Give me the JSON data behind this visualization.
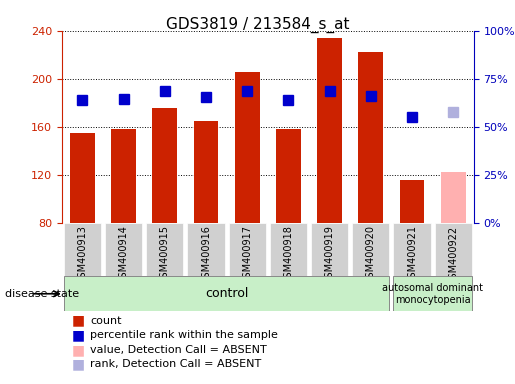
{
  "title": "GDS3819 / 213584_s_at",
  "samples": [
    "GSM400913",
    "GSM400914",
    "GSM400915",
    "GSM400916",
    "GSM400917",
    "GSM400918",
    "GSM400919",
    "GSM400920",
    "GSM400921",
    "GSM400922"
  ],
  "bar_values": [
    155,
    158,
    176,
    165,
    206,
    158,
    234,
    222,
    116,
    122
  ],
  "bar_colors": [
    "#cc2200",
    "#cc2200",
    "#cc2200",
    "#cc2200",
    "#cc2200",
    "#cc2200",
    "#cc2200",
    "#cc2200",
    "#cc2200",
    "#ffb0b0"
  ],
  "rank_values": [
    182,
    183,
    190,
    185,
    190,
    182,
    190,
    186,
    168,
    172
  ],
  "rank_colors": [
    "#0000cc",
    "#0000cc",
    "#0000cc",
    "#0000cc",
    "#0000cc",
    "#0000cc",
    "#0000cc",
    "#0000cc",
    "#0000cc",
    "#b0b0dd"
  ],
  "ylim_left": [
    80,
    240
  ],
  "yticks_left": [
    80,
    120,
    160,
    200,
    240
  ],
  "ylim_right": [
    0,
    100
  ],
  "yticks_right": [
    0,
    25,
    50,
    75,
    100
  ],
  "yticklabels_right": [
    "0%",
    "25%",
    "50%",
    "75%",
    "100%"
  ],
  "bar_bottom": 80,
  "group_control_label": "control",
  "group_disease_label": "autosomal dominant\nmonocytopenia",
  "disease_state_label": "disease state",
  "legend_items": [
    {
      "label": "count",
      "color": "#cc2200"
    },
    {
      "label": "percentile rank within the sample",
      "color": "#0000cc"
    },
    {
      "label": "value, Detection Call = ABSENT",
      "color": "#ffb0b0"
    },
    {
      "label": "rank, Detection Call = ABSENT",
      "color": "#b0b0dd"
    }
  ],
  "left_axis_color": "#cc2200",
  "right_axis_color": "#0000bb",
  "background_plot": "#ffffff",
  "background_xtick": "#d0d0d0",
  "grid_color": "#000000",
  "rank_marker_size": 7,
  "bar_width": 0.6
}
